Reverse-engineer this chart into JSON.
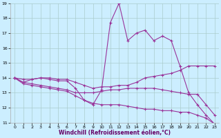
{
  "xlabel": "Windchill (Refroidissement éolien,°C)",
  "xlim": [
    -0.5,
    23.5
  ],
  "ylim": [
    11,
    19
  ],
  "yticks": [
    11,
    12,
    13,
    14,
    15,
    16,
    17,
    18,
    19
  ],
  "xticks": [
    0,
    1,
    2,
    3,
    4,
    5,
    6,
    7,
    8,
    9,
    10,
    11,
    12,
    13,
    14,
    15,
    16,
    17,
    18,
    19,
    20,
    21,
    22,
    23
  ],
  "bg_color": "#cceeff",
  "grid_color": "#aacccc",
  "line_color": "#993399",
  "lines": [
    {
      "x": [
        0,
        1,
        2,
        3,
        4,
        5,
        6,
        7,
        8,
        9,
        10,
        11,
        12,
        13,
        14,
        15,
        16,
        17,
        18,
        19,
        20,
        21,
        22,
        23
      ],
      "y": [
        14.0,
        13.7,
        13.9,
        14.0,
        13.9,
        13.8,
        13.8,
        13.3,
        12.5,
        12.2,
        13.2,
        17.7,
        19.0,
        16.5,
        17.0,
        17.2,
        16.5,
        16.8,
        16.5,
        14.8,
        13.0,
        12.2,
        11.5,
        10.9
      ]
    },
    {
      "x": [
        0,
        1,
        2,
        3,
        4,
        5,
        6,
        7,
        8,
        9,
        10,
        11,
        12,
        13,
        14,
        15,
        16,
        17,
        18,
        19,
        20,
        21,
        22,
        23
      ],
      "y": [
        14.0,
        13.9,
        13.9,
        14.0,
        14.0,
        13.9,
        13.9,
        13.7,
        13.5,
        13.3,
        13.4,
        13.4,
        13.5,
        13.5,
        13.7,
        14.0,
        14.1,
        14.2,
        14.3,
        14.5,
        14.8,
        14.8,
        14.8,
        14.8
      ]
    },
    {
      "x": [
        0,
        1,
        2,
        3,
        4,
        5,
        6,
        7,
        8,
        9,
        10,
        11,
        12,
        13,
        14,
        15,
        16,
        17,
        18,
        19,
        20,
        21,
        22,
        23
      ],
      "y": [
        14.0,
        13.7,
        13.6,
        13.5,
        13.4,
        13.3,
        13.2,
        13.0,
        13.0,
        13.0,
        13.1,
        13.2,
        13.2,
        13.3,
        13.3,
        13.3,
        13.3,
        13.2,
        13.1,
        13.0,
        12.9,
        12.9,
        12.2,
        11.5
      ]
    },
    {
      "x": [
        0,
        1,
        2,
        3,
        4,
        5,
        6,
        7,
        8,
        9,
        10,
        11,
        12,
        13,
        14,
        15,
        16,
        17,
        18,
        19,
        20,
        21,
        22,
        23
      ],
      "y": [
        14.0,
        13.6,
        13.5,
        13.4,
        13.3,
        13.2,
        13.1,
        12.8,
        12.5,
        12.3,
        12.2,
        12.2,
        12.2,
        12.1,
        12.0,
        11.9,
        11.9,
        11.8,
        11.8,
        11.7,
        11.7,
        11.5,
        11.3,
        10.9
      ]
    }
  ]
}
